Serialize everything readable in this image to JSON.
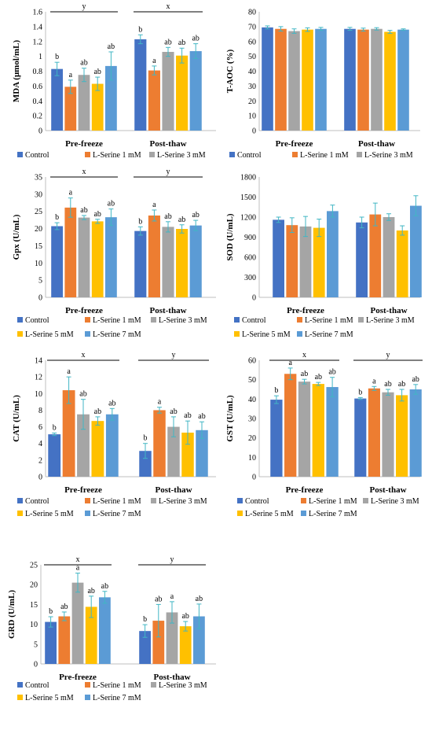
{
  "chart_data": [
    {
      "type": "bar",
      "categories": [
        "Pre-freeze",
        "Post-thaw"
      ],
      "ylabel": "MDA (μmol/mL)",
      "ylim": [
        0,
        1.6
      ],
      "yticks": [
        "0",
        "0.2",
        "0.4",
        "0.6",
        "0.8",
        "1",
        "1.2",
        "1.4",
        "1.6"
      ],
      "series": [
        {
          "name": "Control",
          "values": [
            0.83,
            1.23
          ],
          "errors": [
            0.09,
            0.06
          ],
          "letters": [
            "b",
            "b"
          ]
        },
        {
          "name": "L-Serine 1 mM",
          "values": [
            0.59,
            0.81
          ],
          "errors": [
            0.09,
            0.06
          ],
          "letters": [
            "a",
            "a"
          ]
        },
        {
          "name": "L-Serine 3 mM",
          "values": [
            0.75,
            1.06
          ],
          "errors": [
            0.09,
            0.06
          ],
          "letters": [
            "ab",
            "ab"
          ]
        },
        {
          "name": "L-Serine 5 mM",
          "values": [
            0.63,
            1.01
          ],
          "errors": [
            0.09,
            0.1
          ],
          "letters": [
            "ab",
            "ab"
          ]
        },
        {
          "name": "L-Serine 7 mM",
          "values": [
            0.87,
            1.07
          ],
          "errors": [
            0.19,
            0.1
          ],
          "letters": [
            "ab",
            "ab"
          ]
        }
      ],
      "group_letters": [
        "y",
        "x"
      ],
      "legend_shown": [
        "Control",
        "L-Serine 1 mM",
        "L-Serine 3 mM"
      ]
    },
    {
      "type": "bar",
      "categories": [
        "Pre-freeze",
        "Post-thaw"
      ],
      "ylabel": "T-AOC (%)",
      "ylim": [
        0,
        80
      ],
      "yticks": [
        "0",
        "10",
        "20",
        "30",
        "40",
        "50",
        "60",
        "70",
        "80"
      ],
      "series": [
        {
          "name": "Control",
          "values": [
            69.5,
            68.5
          ],
          "errors": [
            1,
            1
          ],
          "letters": [
            "",
            ""
          ]
        },
        {
          "name": "L-Serine 1 mM",
          "values": [
            68.5,
            68
          ],
          "errors": [
            1.5,
            1
          ],
          "letters": [
            "",
            ""
          ]
        },
        {
          "name": "L-Serine 3 mM",
          "values": [
            67,
            68.5
          ],
          "errors": [
            1.5,
            0.8
          ],
          "letters": [
            "",
            ""
          ]
        },
        {
          "name": "L-Serine 5 mM",
          "values": [
            68,
            66.5
          ],
          "errors": [
            1.2,
            1
          ],
          "letters": [
            "",
            ""
          ]
        },
        {
          "name": "L-Serine 7 mM",
          "values": [
            68.5,
            68
          ],
          "errors": [
            1,
            0.5
          ],
          "letters": [
            "",
            ""
          ]
        }
      ],
      "group_letters": [
        "",
        ""
      ],
      "legend_shown": [
        "Control",
        "L-Serine 1 mM",
        "L-Serine 3 mM"
      ]
    },
    {
      "type": "bar",
      "categories": [
        "Pre-freeze",
        "Post-thaw"
      ],
      "ylabel": "Gpx (U/mL)",
      "ylim": [
        0,
        35
      ],
      "yticks": [
        "0",
        "5",
        "10",
        "15",
        "20",
        "25",
        "30",
        "35"
      ],
      "series": [
        {
          "name": "Control",
          "values": [
            20.7,
            19.3
          ],
          "errors": [
            1,
            1.2
          ],
          "letters": [
            "b",
            "b"
          ]
        },
        {
          "name": "L-Serine 1 mM",
          "values": [
            26.1,
            23.8
          ],
          "errors": [
            2.8,
            1.6
          ],
          "letters": [
            "a",
            "a"
          ]
        },
        {
          "name": "L-Serine 3 mM",
          "values": [
            23.2,
            20.5
          ],
          "errors": [
            0.6,
            1.5
          ],
          "letters": [
            "ab",
            "ab"
          ]
        },
        {
          "name": "L-Serine 5 mM",
          "values": [
            22.1,
            19.9
          ],
          "errors": [
            0.6,
            1.2
          ],
          "letters": [
            "ab",
            "ab"
          ]
        },
        {
          "name": "L-Serine 7 mM",
          "values": [
            23.3,
            20.9
          ],
          "errors": [
            2.4,
            1.5
          ],
          "letters": [
            "ab",
            "ab"
          ]
        }
      ],
      "group_letters": [
        "x",
        "y"
      ],
      "legend_shown": [
        "Control",
        "L-Serine 1 mM",
        "L-Serine 3 mM",
        "L-Serine 5 mM",
        "L-Serine 7 mM"
      ]
    },
    {
      "type": "bar",
      "categories": [
        "Pre-freeze",
        "Post-thaw"
      ],
      "ylabel": "SOD (U/mL)",
      "ylim": [
        0,
        1800
      ],
      "yticks": [
        "0",
        "300",
        "600",
        "900",
        "1200",
        "1500",
        "1800"
      ],
      "series": [
        {
          "name": "Control",
          "values": [
            1160,
            1120
          ],
          "errors": [
            40,
            80
          ],
          "letters": [
            "",
            ""
          ]
        },
        {
          "name": "L-Serine 1 mM",
          "values": [
            1080,
            1240
          ],
          "errors": [
            110,
            170
          ],
          "letters": [
            "",
            ""
          ]
        },
        {
          "name": "L-Serine 3 mM",
          "values": [
            1060,
            1200
          ],
          "errors": [
            150,
            50
          ],
          "letters": [
            "",
            ""
          ]
        },
        {
          "name": "L-Serine 5 mM",
          "values": [
            1040,
            1000
          ],
          "errors": [
            130,
            70
          ],
          "letters": [
            "",
            ""
          ]
        },
        {
          "name": "L-Serine 7 mM",
          "values": [
            1290,
            1370
          ],
          "errors": [
            90,
            150
          ],
          "letters": [
            "",
            ""
          ]
        }
      ],
      "group_letters": [
        "",
        ""
      ],
      "legend_shown": [
        "Control",
        "L-Serine 1 mM",
        "L-Serine 3 mM",
        "L-Serine 5 mM",
        "L-Serine 7 mM"
      ]
    },
    {
      "type": "bar",
      "categories": [
        "Pre-freeze",
        "Post-thaw"
      ],
      "ylabel": "CAT (U/mL)",
      "ylim": [
        0,
        14
      ],
      "yticks": [
        "0",
        "2",
        "4",
        "6",
        "8",
        "10",
        "12",
        "14"
      ],
      "series": [
        {
          "name": "Control",
          "values": [
            5.1,
            3.1
          ],
          "errors": [
            0.15,
            0.9
          ],
          "letters": [
            "b",
            "b"
          ]
        },
        {
          "name": "L-Serine 1 mM",
          "values": [
            10.4,
            8
          ],
          "errors": [
            1.6,
            0.35
          ],
          "letters": [
            "a",
            "a"
          ]
        },
        {
          "name": "L-Serine 3 mM",
          "values": [
            7.5,
            6
          ],
          "errors": [
            1.8,
            1.2
          ],
          "letters": [
            "ab",
            "ab"
          ]
        },
        {
          "name": "L-Serine 5 mM",
          "values": [
            6.7,
            5.3
          ],
          "errors": [
            0.5,
            1.4
          ],
          "letters": [
            "ab",
            "ab"
          ]
        },
        {
          "name": "L-Serine 7 mM",
          "values": [
            7.5,
            5.6
          ],
          "errors": [
            0.7,
            1
          ],
          "letters": [
            "ab",
            "ab"
          ]
        }
      ],
      "group_letters": [
        "x",
        "y"
      ],
      "legend_shown": [
        "Control",
        "L-Serine 1 mM",
        "L-Serine 3 mM",
        "L-Serine 5 mM",
        "L-Serine 7 mM"
      ]
    },
    {
      "type": "bar",
      "categories": [
        "Pre-freeze",
        "Post-thaw"
      ],
      "ylabel": "GST (U/mL)",
      "ylim": [
        0,
        60
      ],
      "yticks": [
        "0",
        "10",
        "20",
        "30",
        "40",
        "50",
        "60"
      ],
      "series": [
        {
          "name": "Control",
          "values": [
            39.7,
            40.3
          ],
          "errors": [
            2,
            0.5
          ],
          "letters": [
            "b",
            "b"
          ]
        },
        {
          "name": "L-Serine 1 mM",
          "values": [
            53,
            45.5
          ],
          "errors": [
            3,
            1
          ],
          "letters": [
            "a",
            "a"
          ]
        },
        {
          "name": "L-Serine 3 mM",
          "values": [
            49,
            43.5
          ],
          "errors": [
            1.2,
            1.5
          ],
          "letters": [
            "ab",
            "ab"
          ]
        },
        {
          "name": "L-Serine 5 mM",
          "values": [
            47.8,
            42
          ],
          "errors": [
            0.8,
            3
          ],
          "letters": [
            "ab",
            "ab"
          ]
        },
        {
          "name": "L-Serine 7 mM",
          "values": [
            46.2,
            45
          ],
          "errors": [
            5,
            2.5
          ],
          "letters": [
            "ab",
            "ab"
          ]
        }
      ],
      "group_letters": [
        "x",
        "y"
      ],
      "legend_shown": [
        "Control",
        "L-Serine 1 mM",
        "L-Serine 3 mM",
        "L-Serine 5 mM",
        "L-Serine 7 mM"
      ]
    },
    {
      "type": "bar",
      "categories": [
        "Pre-freeze",
        "Post-thaw"
      ],
      "ylabel": "GRD (U/mL)",
      "ylim": [
        0,
        25
      ],
      "yticks": [
        "0",
        "5",
        "10",
        "15",
        "20",
        "25"
      ],
      "series": [
        {
          "name": "Control",
          "values": [
            10.6,
            8.3
          ],
          "errors": [
            1.3,
            1.6
          ],
          "letters": [
            "b",
            "b"
          ]
        },
        {
          "name": "L-Serine 1 mM",
          "values": [
            12,
            10.9
          ],
          "errors": [
            1.1,
            4.1
          ],
          "letters": [
            "ab",
            "ab"
          ]
        },
        {
          "name": "L-Serine 3 mM",
          "values": [
            20.5,
            13
          ],
          "errors": [
            2.4,
            2.7
          ],
          "letters": [
            "a",
            "a"
          ]
        },
        {
          "name": "L-Serine 5 mM",
          "values": [
            14.4,
            9.5
          ],
          "errors": [
            2.7,
            1.2
          ],
          "letters": [
            "ab",
            "ab"
          ]
        },
        {
          "name": "L-Serine 7 mM",
          "values": [
            16.8,
            12
          ],
          "errors": [
            1.5,
            3.1
          ],
          "letters": [
            "ab",
            "ab"
          ]
        }
      ],
      "group_letters": [
        "x",
        "y"
      ],
      "legend_shown": [
        "Control",
        "L-Serine 1 mM",
        "L-Serine 3 mM",
        "L-Serine 5 mM",
        "L-Serine 7 mM"
      ]
    }
  ],
  "colors": [
    "#4472c4",
    "#ed7d31",
    "#a5a5a5",
    "#ffc000",
    "#5b9bd5"
  ],
  "error_bar_color": "#41b6c4"
}
